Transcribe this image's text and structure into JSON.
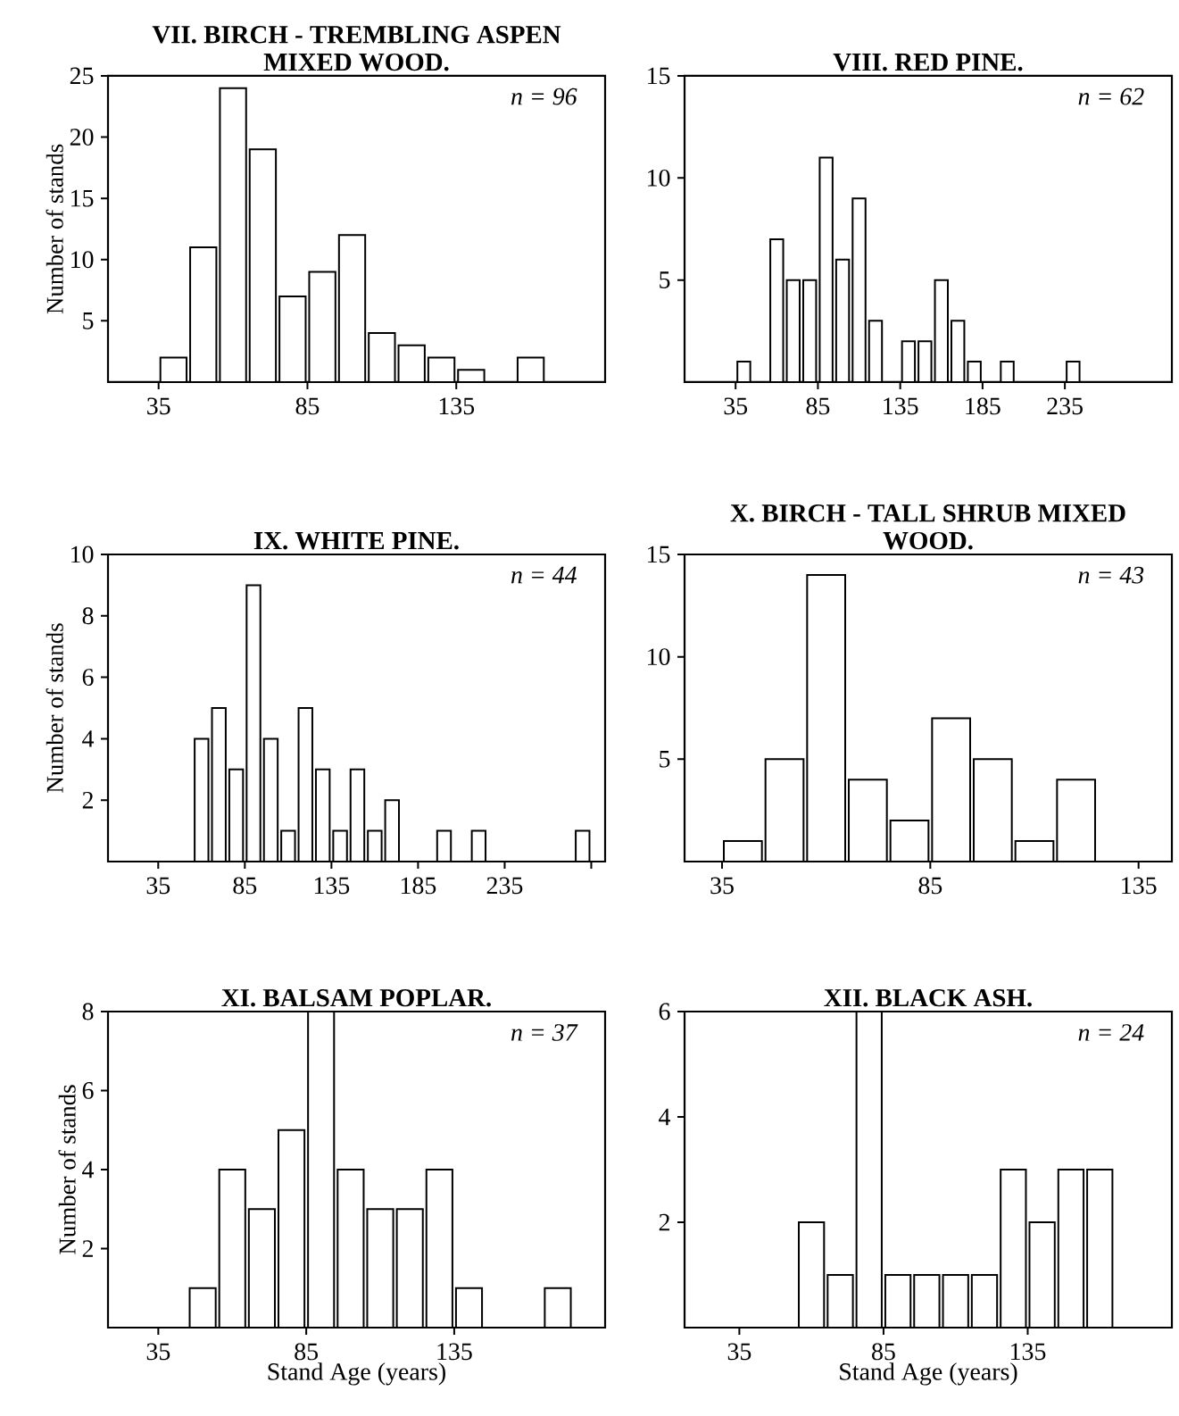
{
  "chart_data": [
    {
      "type": "histogram",
      "title": "VII. BIRCH - TREMBLING ASPEN MIXED WOOD.",
      "ylabel": "Number of stands",
      "annotations": [
        "n = 96"
      ],
      "color": "#ffffff",
      "bins": [
        35,
        45,
        55,
        65,
        75,
        85,
        95,
        105,
        115,
        125,
        135,
        145,
        155,
        165
      ],
      "values": [
        2,
        11,
        24,
        19,
        7,
        9,
        12,
        4,
        3,
        2,
        1,
        0,
        2
      ],
      "xlim": [
        18,
        185
      ],
      "ylim": [
        0,
        25
      ],
      "xticks": [
        35,
        85,
        135
      ],
      "yticks": [
        5,
        10,
        15,
        20,
        25
      ]
    },
    {
      "type": "histogram",
      "title": "VIII. RED PINE.",
      "annotations": [
        "n = 62"
      ],
      "color": "#ffffff",
      "bins": [
        35,
        45,
        55,
        65,
        75,
        85,
        95,
        105,
        115,
        125,
        135,
        145,
        155,
        165,
        175,
        185,
        195,
        205,
        215,
        225,
        235,
        245
      ],
      "values": [
        1,
        0,
        7,
        5,
        5,
        11,
        6,
        9,
        3,
        0,
        2,
        2,
        5,
        3,
        1,
        0,
        1,
        0,
        0,
        0,
        1
      ],
      "xlim": [
        4,
        300
      ],
      "ylim": [
        0,
        15
      ],
      "xticks": [
        35,
        85,
        135,
        185,
        235
      ],
      "yticks": [
        5,
        10,
        15
      ]
    },
    {
      "type": "histogram",
      "title": "IX. WHITE PINE.",
      "ylabel": "Number of stands",
      "annotations": [
        "n = 44"
      ],
      "color": "#ffffff",
      "bins": [
        55,
        65,
        75,
        85,
        95,
        105,
        115,
        125,
        135,
        145,
        155,
        165,
        175,
        185,
        195,
        205,
        215,
        225,
        235,
        245,
        255,
        265,
        275,
        285
      ],
      "values": [
        4,
        5,
        3,
        9,
        4,
        1,
        5,
        3,
        1,
        3,
        1,
        2,
        0,
        0,
        1,
        0,
        1,
        0,
        0,
        0,
        0,
        0,
        1
      ],
      "xlim": [
        6,
        293
      ],
      "ylim": [
        0,
        10
      ],
      "xticks": [
        35,
        85,
        135,
        185,
        235,
        {
          "value": 285,
          "label": null
        }
      ],
      "yticks": [
        2,
        4,
        6,
        8,
        10
      ]
    },
    {
      "type": "histogram",
      "title": "X. BIRCH - TALL SHRUB MIXED WOOD.",
      "annotations": [
        "n = 43"
      ],
      "color": "#ffffff",
      "bins": [
        35,
        45,
        55,
        65,
        75,
        85,
        95,
        105,
        115,
        125
      ],
      "values": [
        1,
        5,
        14,
        4,
        2,
        7,
        5,
        1,
        4
      ],
      "xlim": [
        26,
        143
      ],
      "ylim": [
        0,
        15
      ],
      "xticks": [
        35,
        85,
        135
      ],
      "yticks": [
        5,
        10,
        15
      ]
    },
    {
      "type": "histogram",
      "title": "XI. BALSAM POPLAR.",
      "xlabel": "Stand Age (years)",
      "ylabel": "Number of stands",
      "annotations": [
        "n = 37"
      ],
      "color": "#ffffff",
      "bins": [
        45,
        55,
        65,
        75,
        85,
        95,
        105,
        115,
        125,
        135,
        145,
        155,
        165,
        175
      ],
      "values": [
        1,
        4,
        3,
        5,
        8,
        4,
        3,
        3,
        4,
        1,
        0,
        0,
        1
      ],
      "xlim": [
        18,
        186
      ],
      "ylim": [
        0,
        8
      ],
      "xticks": [
        35,
        85,
        135
      ],
      "yticks": [
        2,
        4,
        6,
        8
      ]
    },
    {
      "type": "histogram",
      "title": "XII. BLACK ASH.",
      "xlabel": "Stand Age (years)",
      "annotations": [
        "n = 24"
      ],
      "color": "#ffffff",
      "bins": [
        55,
        65,
        75,
        85,
        95,
        105,
        115,
        125,
        135,
        145,
        155,
        165
      ],
      "values": [
        2,
        1,
        6,
        1,
        1,
        1,
        1,
        3,
        2,
        3,
        3
      ],
      "xlim": [
        16,
        185
      ],
      "ylim": [
        0,
        6
      ],
      "xticks": [
        35,
        85,
        135
      ],
      "yticks": [
        2,
        4,
        6
      ]
    }
  ]
}
